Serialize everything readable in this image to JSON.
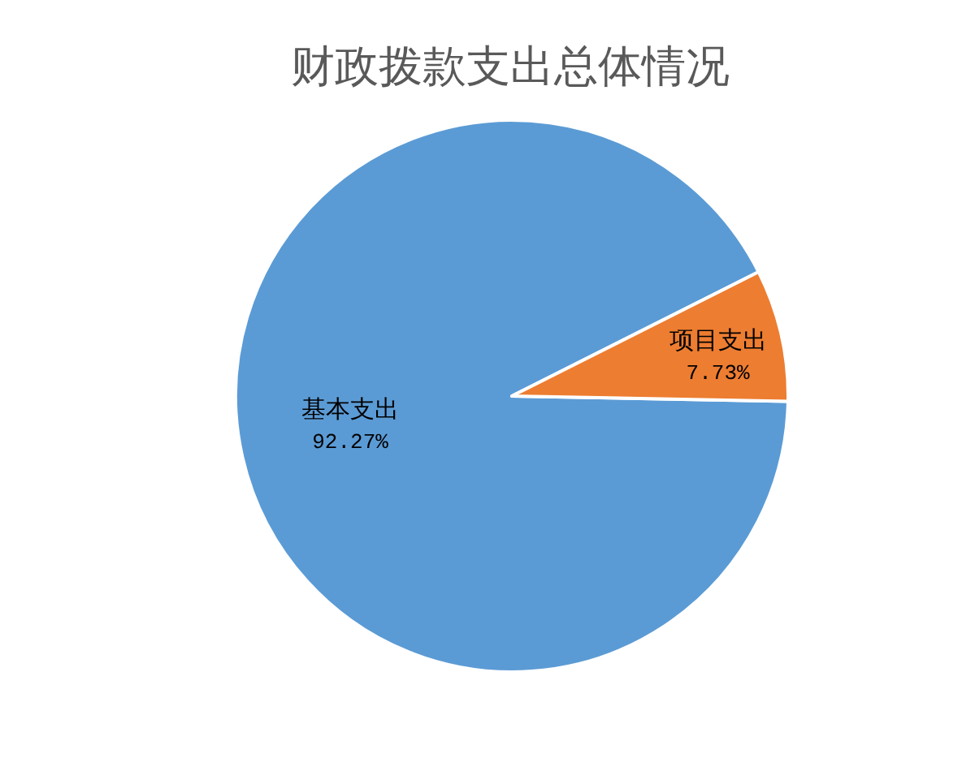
{
  "chart_data": {
    "type": "pie",
    "title": "财政拨款支出总体情况",
    "categories": [
      "基本支出",
      "项目支出"
    ],
    "values": [
      92.27,
      7.73
    ],
    "colors": [
      "#5b9bd5",
      "#ed7d31"
    ],
    "value_labels": [
      "92.27%",
      "7.73%"
    ]
  }
}
